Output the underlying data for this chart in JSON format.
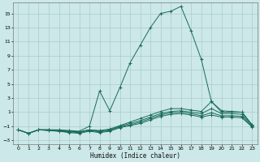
{
  "title": "",
  "xlabel": "Humidex (Indice chaleur)",
  "bg_color": "#cce8e8",
  "grid_color": "#aacccc",
  "line_color": "#1a6b5a",
  "xlim": [
    -0.5,
    23.5
  ],
  "ylim": [
    -3.5,
    16.5
  ],
  "xticks": [
    0,
    1,
    2,
    3,
    4,
    5,
    6,
    7,
    8,
    9,
    10,
    11,
    12,
    13,
    14,
    15,
    16,
    17,
    18,
    19,
    20,
    21,
    22,
    23
  ],
  "yticks": [
    -3,
    -1,
    1,
    3,
    5,
    7,
    9,
    11,
    13,
    15
  ],
  "series": [
    {
      "x": [
        0,
        1,
        2,
        3,
        4,
        5,
        6,
        7,
        8,
        9,
        10,
        11,
        12,
        13,
        14,
        15,
        16,
        17,
        18,
        19,
        20,
        21,
        22,
        23
      ],
      "y": [
        -1.5,
        -2.0,
        -1.5,
        -1.5,
        -1.5,
        -1.6,
        -1.7,
        -1.0,
        4.0,
        1.2,
        4.5,
        8.0,
        10.5,
        13.0,
        15.0,
        15.3,
        16.0,
        12.5,
        8.5,
        2.5,
        1.2,
        1.1,
        1.0,
        -0.8
      ]
    },
    {
      "x": [
        0,
        1,
        2,
        3,
        4,
        5,
        6,
        7,
        8,
        9,
        10,
        11,
        12,
        13,
        14,
        15,
        16,
        17,
        18,
        19,
        20,
        21,
        22,
        23
      ],
      "y": [
        -1.5,
        -2.0,
        -1.5,
        -1.5,
        -1.6,
        -1.7,
        -1.8,
        -1.5,
        -1.6,
        -1.4,
        -0.9,
        -0.4,
        0.1,
        0.6,
        1.1,
        1.5,
        1.5,
        1.3,
        1.1,
        2.5,
        1.0,
        1.0,
        1.0,
        -0.8
      ]
    },
    {
      "x": [
        0,
        1,
        2,
        3,
        4,
        5,
        6,
        7,
        8,
        9,
        10,
        11,
        12,
        13,
        14,
        15,
        16,
        17,
        18,
        19,
        20,
        21,
        22,
        23
      ],
      "y": [
        -1.5,
        -2.0,
        -1.5,
        -1.5,
        -1.6,
        -1.7,
        -1.8,
        -1.5,
        -1.7,
        -1.5,
        -1.0,
        -0.6,
        -0.2,
        0.3,
        0.8,
        1.1,
        1.2,
        1.0,
        0.8,
        1.5,
        0.8,
        0.8,
        0.7,
        -0.9
      ]
    },
    {
      "x": [
        0,
        1,
        2,
        3,
        4,
        5,
        6,
        7,
        8,
        9,
        10,
        11,
        12,
        13,
        14,
        15,
        16,
        17,
        18,
        19,
        20,
        21,
        22,
        23
      ],
      "y": [
        -1.5,
        -2.0,
        -1.5,
        -1.6,
        -1.7,
        -1.8,
        -1.9,
        -1.6,
        -1.8,
        -1.6,
        -1.1,
        -0.8,
        -0.4,
        0.1,
        0.6,
        0.9,
        1.0,
        0.8,
        0.5,
        0.9,
        0.5,
        0.5,
        0.4,
        -1.0
      ]
    },
    {
      "x": [
        0,
        1,
        2,
        3,
        4,
        5,
        6,
        7,
        8,
        9,
        10,
        11,
        12,
        13,
        14,
        15,
        16,
        17,
        18,
        19,
        20,
        21,
        22,
        23
      ],
      "y": [
        -1.5,
        -2.0,
        -1.5,
        -1.6,
        -1.7,
        -1.9,
        -2.0,
        -1.7,
        -1.9,
        -1.7,
        -1.2,
        -0.9,
        -0.6,
        -0.1,
        0.4,
        0.7,
        0.8,
        0.6,
        0.3,
        0.6,
        0.3,
        0.3,
        0.2,
        -1.1
      ]
    }
  ]
}
